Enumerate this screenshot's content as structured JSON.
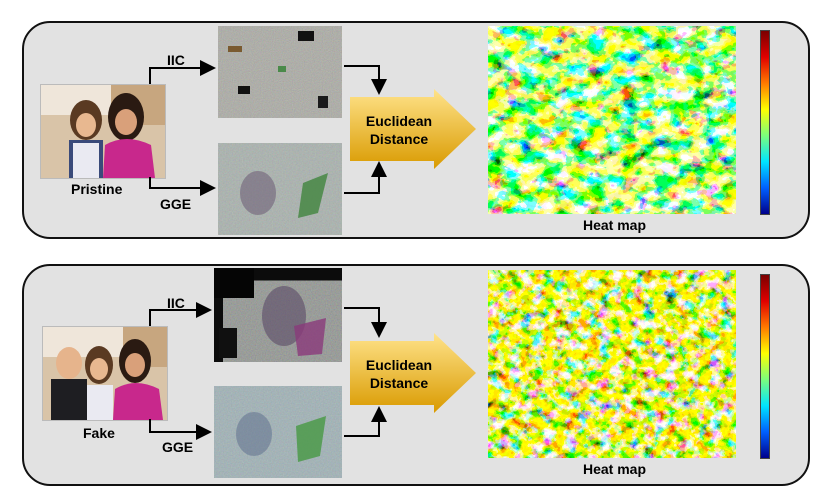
{
  "top": {
    "source_label": "Pristine",
    "iic_label": "IIC",
    "gge_label": "GGE",
    "euclidean_line1": "Euclidean",
    "euclidean_line2": "Distance",
    "heatmap_label": "Heat map"
  },
  "bottom": {
    "source_label": "Fake",
    "iic_label": "IIC",
    "gge_label": "GGE",
    "euclidean_line1": "Euclidean",
    "euclidean_line2": "Distance",
    "heatmap_label": "Heat map"
  },
  "colors": {
    "panel_bg": "#e2e2e2",
    "arrow_gold_light": "#ffe38a",
    "arrow_gold_dark": "#d99a00"
  }
}
